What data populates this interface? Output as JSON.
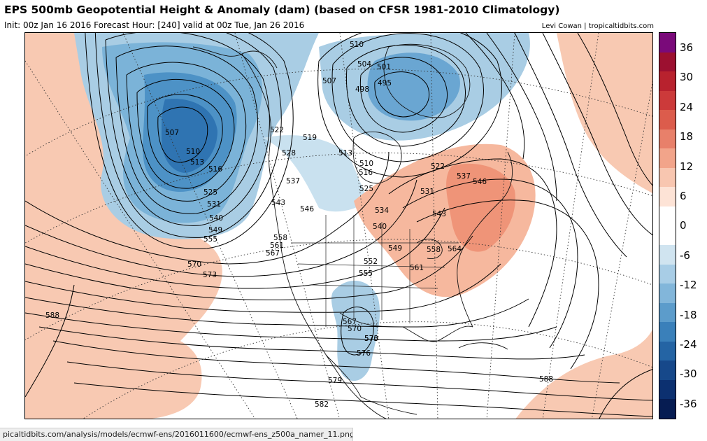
{
  "header": {
    "title": "EPS 500mb Geopotential Height & Anomaly (dam) (based on CFSR 1981-2010 Climatology)",
    "subtitle": "Init: 00z Jan 16 2016   Forecast Hour: [240]   valid at 00z Tue, Jan 26 2016",
    "credit": "Levi Cowan | tropicaltidbits.com"
  },
  "colorbar": {
    "labels": [
      "36",
      "30",
      "24",
      "18",
      "12",
      "6",
      "0",
      "-6",
      "-12",
      "-18",
      "-24",
      "-30",
      "-36"
    ],
    "colors": [
      "#7a0a7a",
      "#9c1030",
      "#b8222e",
      "#cc3a3a",
      "#dc5c4c",
      "#e8806a",
      "#f2a48a",
      "#f8c6b0",
      "#fde3d6",
      "#ffffff",
      "#ffffff",
      "#d0e4f0",
      "#a8cde6",
      "#82b6da",
      "#5c9ccb",
      "#3a80ba",
      "#2464a4",
      "#16488a",
      "#0c3070",
      "#061c52"
    ]
  },
  "map": {
    "type": "height-anomaly",
    "contour_labels": [
      "510",
      "504",
      "501",
      "495",
      "498",
      "507",
      "507",
      "510",
      "513",
      "516",
      "519",
      "522",
      "528",
      "513",
      "510",
      "516",
      "522",
      "525",
      "531",
      "537",
      "546",
      "537",
      "543",
      "546",
      "525",
      "531",
      "540",
      "549",
      "555",
      "534",
      "540",
      "543",
      "549",
      "552",
      "555",
      "558",
      "558",
      "561",
      "564",
      "561",
      "567",
      "570",
      "573",
      "570",
      "567",
      "570",
      "573",
      "576",
      "579",
      "582",
      "588",
      "588"
    ]
  },
  "footer": {
    "url": "picaltidbits.com/analysis/models/ecmwf-ens/2016011600/ecmwf-ens_z500a_namer_11.png"
  }
}
